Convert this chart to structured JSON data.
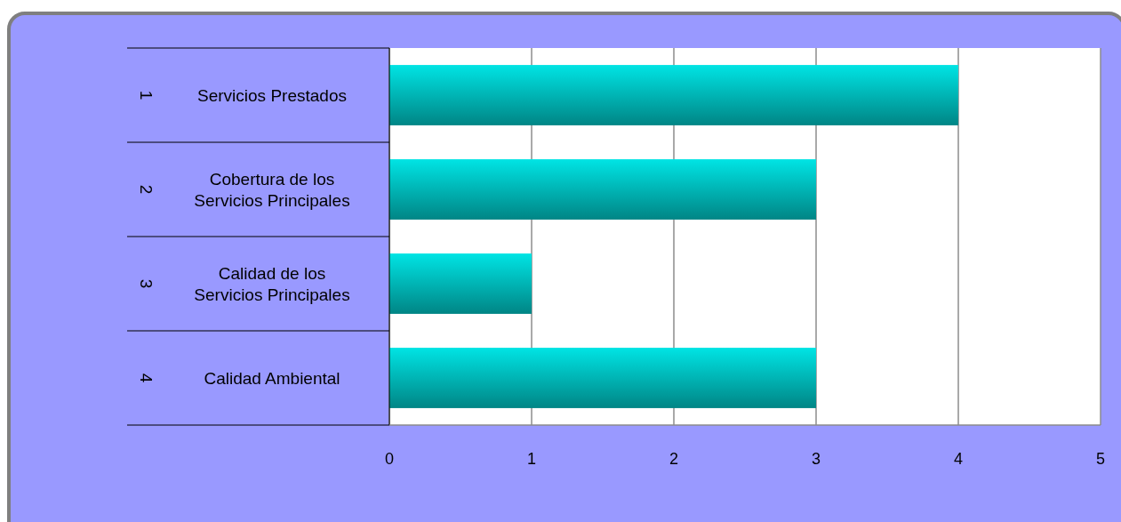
{
  "chart_data": {
    "type": "bar",
    "orientation": "horizontal",
    "categories": [
      "Servicios Prestados",
      "Cobertura de los Servicios Principales",
      "Calidad de los Servicios Principales",
      "Calidad Ambiental"
    ],
    "values": [
      4,
      3,
      1,
      3
    ],
    "color": "#00b8b8",
    "xlim": [
      0,
      5
    ],
    "xticks": [
      0,
      1,
      2,
      3,
      4,
      5
    ],
    "grid": "x",
    "annotations": [
      "1",
      "2",
      "3",
      "4"
    ]
  }
}
